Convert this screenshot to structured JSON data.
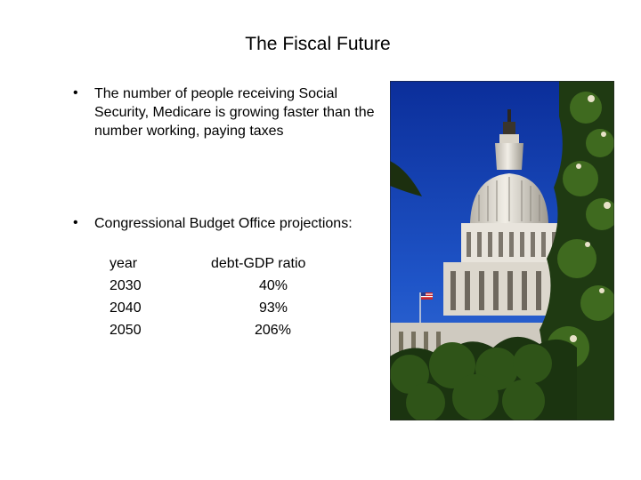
{
  "slide": {
    "title": "The Fiscal Future",
    "bullets": [
      {
        "marker": "•",
        "text": "The number of people receiving Social Security, Medicare is growing faster than the number working, paying taxes"
      },
      {
        "marker": "•",
        "text": "Congressional Budget Office projections:"
      }
    ],
    "projection_table": {
      "headers": [
        "year",
        "debt-GDP ratio"
      ],
      "rows": [
        [
          "2030",
          "40%"
        ],
        [
          "2040",
          "93%"
        ],
        [
          "2050",
          "206%"
        ]
      ]
    },
    "image": {
      "subject": "us-capitol-dome-photo"
    }
  }
}
